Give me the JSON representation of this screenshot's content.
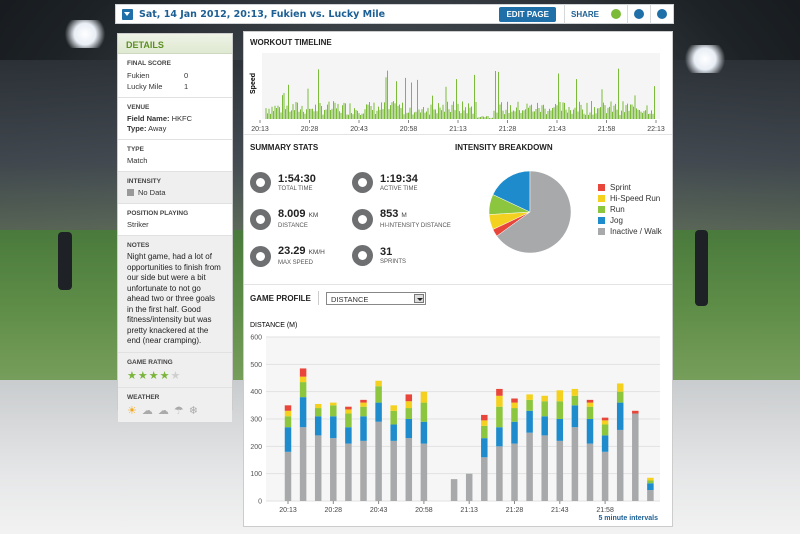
{
  "header": {
    "title": "Sat, 14 Jan 2012, 20:13, Fukien vs. Lucky Mile",
    "edit_label": "EDIT PAGE",
    "share_label": "SHARE"
  },
  "sidebar": {
    "title": "DETAILS",
    "final_score": {
      "label": "FINAL SCORE",
      "teams": [
        {
          "name": "Fukien",
          "score": "0"
        },
        {
          "name": "Lucky Mile",
          "score": "1"
        }
      ]
    },
    "venue": {
      "label": "VENUE",
      "field_key": "Field Name:",
      "field_value": "HKFC",
      "type_key": "Type:",
      "type_value": "Away"
    },
    "type": {
      "label": "TYPE",
      "value": "Match"
    },
    "intensity": {
      "label": "INTENSITY",
      "value": "No Data"
    },
    "position": {
      "label": "POSITION PLAYING",
      "value": "Striker"
    },
    "notes": {
      "label": "NOTES",
      "text": "Night game, had a lot of opportunities to finish from our side but were a bit unfortunate to not go ahead two or three goals in the first half. Good fitness/intensity but was pretty knackered at the end (near cramping)."
    },
    "rating": {
      "label": "GAME RATING",
      "stars": 4,
      "max": 5
    },
    "weather": {
      "label": "WEATHER",
      "icons": [
        "sun-icon",
        "partly-cloudy-icon",
        "cloud-icon",
        "rain-icon",
        "snow-icon"
      ]
    }
  },
  "timeline": {
    "title": "WORKOUT TIMELINE",
    "ylabel": "Speed",
    "ticks": [
      "20:13",
      "20:28",
      "20:43",
      "20:58",
      "21:13",
      "21:28",
      "21:43",
      "21:58",
      "22:13"
    ]
  },
  "summary": {
    "title": "SUMMARY STATS",
    "stats": [
      {
        "value": "1:54:30",
        "unit": "",
        "label": "TOTAL TIME",
        "icon": "clock-icon"
      },
      {
        "value": "1:19:34",
        "unit": "",
        "label": "ACTIVE TIME",
        "icon": "active-clock-icon"
      },
      {
        "value": "8.009",
        "unit": "KM",
        "label": "DISTANCE",
        "icon": "distance-icon"
      },
      {
        "value": "853",
        "unit": "M",
        "label": "HI-INTENSITY DISTANCE",
        "icon": "hi-intensity-icon"
      },
      {
        "value": "23.29",
        "unit": "KM/H",
        "label": "MAX SPEED",
        "icon": "speedometer-icon"
      },
      {
        "value": "31",
        "unit": "",
        "label": "SPRINTS",
        "icon": "sprints-icon"
      }
    ]
  },
  "intensity": {
    "title": "INTENSITY BREAKDOWN"
  },
  "profile": {
    "title": "GAME PROFILE",
    "select_value": "DISTANCE",
    "footnote": "5 minute intervals"
  },
  "colors": {
    "sprint": "#e8463a",
    "hispeed": "#f4d11e",
    "run": "#8cc63e",
    "jog": "#1e8ccc",
    "inactive": "#a8a9aa",
    "accent": "#1f6fa8",
    "green": "#7cba3a"
  },
  "chart_data": [
    {
      "type": "pie",
      "title": "INTENSITY BREAKDOWN",
      "labels": [
        "Sprint",
        "Hi-Speed Run",
        "Run",
        "Jog",
        "Inactive / Walk"
      ],
      "values": [
        3,
        6,
        8,
        18,
        65
      ]
    },
    {
      "type": "bar",
      "title": "",
      "ylabel": "DISTANCE (M)",
      "ylim": [
        0,
        600
      ],
      "yticks": [
        0,
        100,
        200,
        300,
        400,
        500,
        600
      ],
      "x_tick_labels": [
        "20:13",
        "20:28",
        "20:43",
        "20:58",
        "21:13",
        "21:28",
        "21:43",
        "21:58"
      ],
      "stacked": true,
      "series": [
        {
          "name": "Inactive / Walk",
          "values": [
            180,
            270,
            240,
            230,
            210,
            220,
            290,
            220,
            230,
            210,
            0,
            80,
            100,
            160,
            200,
            210,
            250,
            240,
            220,
            270,
            210,
            180,
            260,
            320,
            40
          ]
        },
        {
          "name": "Jog",
          "values": [
            90,
            110,
            70,
            80,
            60,
            90,
            70,
            60,
            70,
            80,
            0,
            0,
            0,
            70,
            70,
            80,
            80,
            70,
            80,
            80,
            90,
            60,
            100,
            0,
            25
          ]
        },
        {
          "name": "Run",
          "values": [
            40,
            55,
            30,
            40,
            50,
            35,
            60,
            50,
            40,
            70,
            0,
            0,
            0,
            45,
            75,
            50,
            40,
            55,
            65,
            35,
            45,
            40,
            40,
            0,
            10
          ]
        },
        {
          "name": "Hi-Speed Run",
          "values": [
            20,
            20,
            15,
            10,
            15,
            15,
            20,
            20,
            25,
            40,
            0,
            0,
            0,
            20,
            40,
            20,
            20,
            20,
            40,
            25,
            15,
            15,
            30,
            0,
            10
          ]
        },
        {
          "name": "Sprint",
          "values": [
            20,
            30,
            0,
            0,
            10,
            10,
            0,
            0,
            25,
            0,
            0,
            0,
            0,
            20,
            25,
            15,
            0,
            0,
            0,
            0,
            10,
            10,
            0,
            10,
            0
          ]
        }
      ]
    }
  ]
}
